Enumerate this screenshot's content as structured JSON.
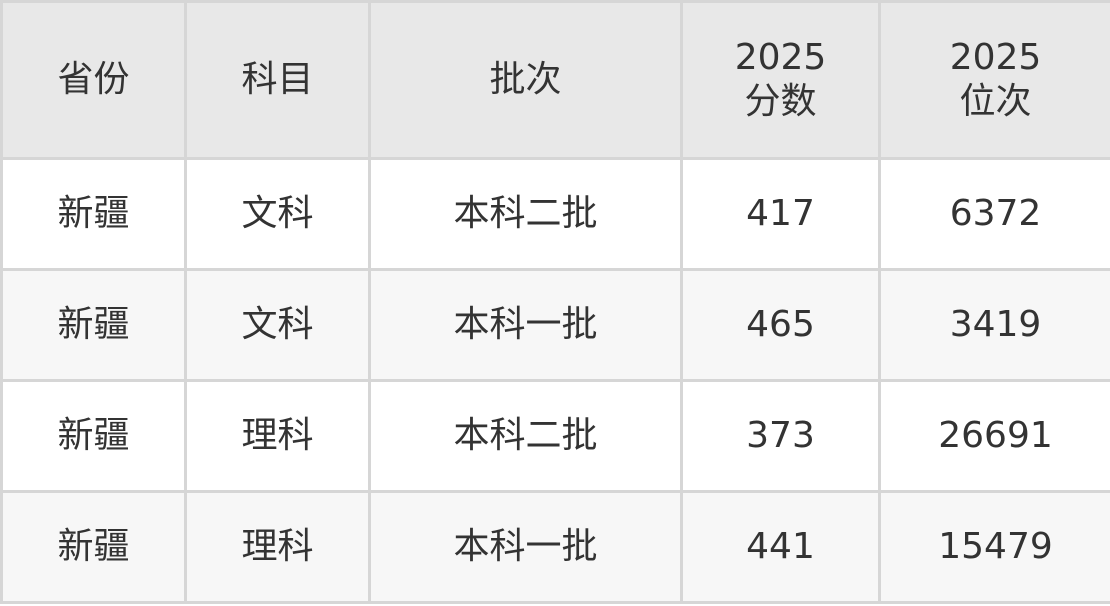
{
  "table": {
    "headers": [
      {
        "lines": [
          "省份"
        ]
      },
      {
        "lines": [
          "科目"
        ]
      },
      {
        "lines": [
          "批次"
        ]
      },
      {
        "lines": [
          "2025",
          "分数"
        ]
      },
      {
        "lines": [
          "2025",
          "位次"
        ]
      }
    ],
    "rows": [
      [
        "新疆",
        "文科",
        "本科二批",
        "417",
        "6372"
      ],
      [
        "新疆",
        "文科",
        "本科一批",
        "465",
        "3419"
      ],
      [
        "新疆",
        "理科",
        "本科二批",
        "373",
        "26691"
      ],
      [
        "新疆",
        "理科",
        "本科一批",
        "441",
        "15479"
      ]
    ]
  },
  "colors": {
    "header_bg": "#e8e8e8",
    "border": "#d6d6d6",
    "alt_row_bg": "#f7f7f7",
    "text": "#333333"
  }
}
